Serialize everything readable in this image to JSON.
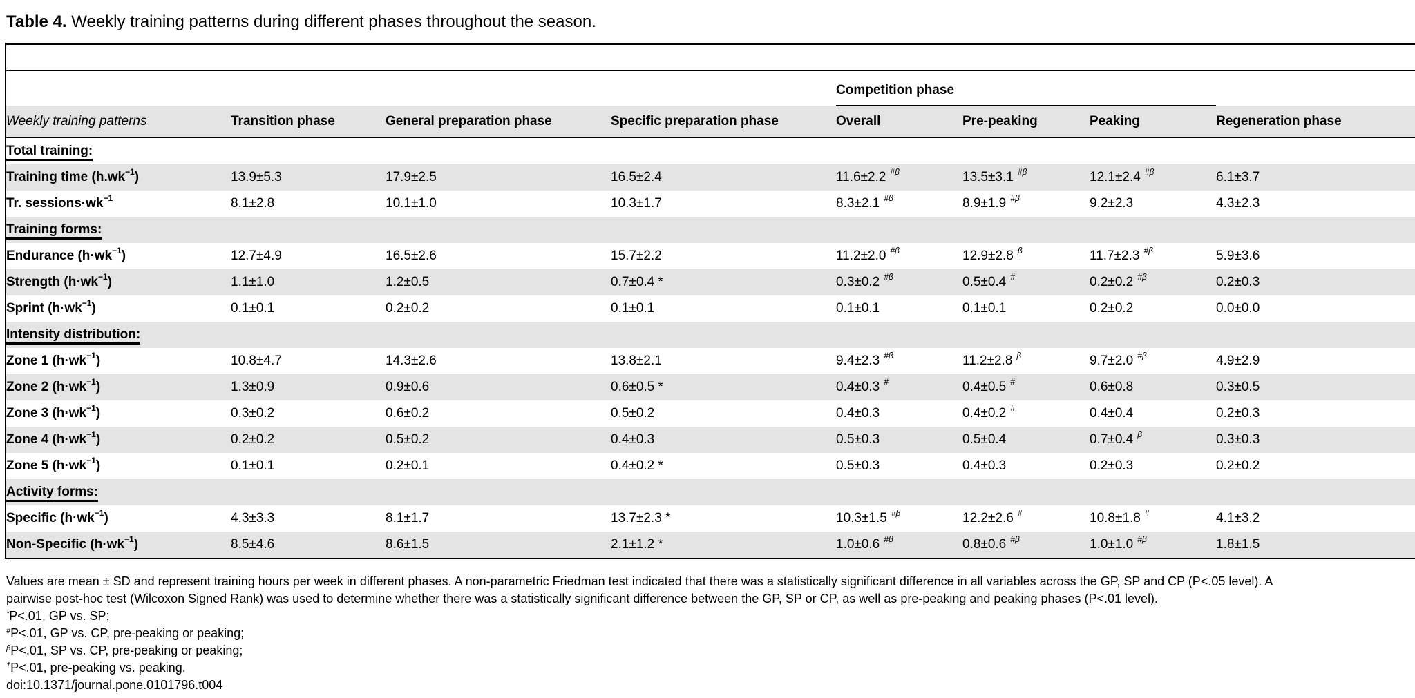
{
  "caption": {
    "label": "Table 4.",
    "text": " Weekly training patterns during different phases throughout the season."
  },
  "header": {
    "group": "Competition phase",
    "columns": [
      "Weekly training patterns",
      "Transition phase",
      "General preparation phase",
      "Specific preparation phase",
      "Overall",
      "Pre-peaking",
      "Peaking",
      "Regeneration phase"
    ]
  },
  "rows": [
    {
      "label": "Total training:",
      "section": true
    },
    {
      "label": "Training time (h.wk",
      "unit_sup": "−1",
      "label_end": ")",
      "cells": [
        [
          "13.9±5.3",
          ""
        ],
        [
          "17.9±2.5",
          ""
        ],
        [
          "16.5±2.4",
          ""
        ],
        [
          "11.6±2.2",
          "#β"
        ],
        [
          "13.5±3.1",
          "#β"
        ],
        [
          "12.1±2.4",
          "#β"
        ],
        [
          "6.1±3.7",
          ""
        ]
      ]
    },
    {
      "label": "Tr. sessions·wk",
      "unit_sup": "−1",
      "label_end": "",
      "cells": [
        [
          "8.1±2.8",
          ""
        ],
        [
          "10.1±1.0",
          ""
        ],
        [
          "10.3±1.7",
          ""
        ],
        [
          "8.3±2.1",
          "#β"
        ],
        [
          "8.9±1.9",
          "#β"
        ],
        [
          "9.2±2.3",
          ""
        ],
        [
          "4.3±2.3",
          ""
        ]
      ]
    },
    {
      "label": "Training forms:",
      "section": true
    },
    {
      "label": "Endurance (h·wk",
      "unit_sup": "−1",
      "label_end": ")",
      "cells": [
        [
          "12.7±4.9",
          ""
        ],
        [
          "16.5±2.6",
          ""
        ],
        [
          "15.7±2.2",
          ""
        ],
        [
          "11.2±2.0",
          "#β"
        ],
        [
          "12.9±2.8",
          "β"
        ],
        [
          "11.7±2.3",
          "#β"
        ],
        [
          "5.9±3.6",
          ""
        ]
      ]
    },
    {
      "label": "Strength (h·wk",
      "unit_sup": "−1",
      "label_end": ")",
      "cells": [
        [
          "1.1±1.0",
          ""
        ],
        [
          "1.2±0.5",
          ""
        ],
        [
          "0.7±0.4 *",
          ""
        ],
        [
          "0.3±0.2",
          "#β"
        ],
        [
          "0.5±0.4",
          "#"
        ],
        [
          "0.2±0.2",
          "#β"
        ],
        [
          "0.2±0.3",
          ""
        ]
      ]
    },
    {
      "label": "Sprint (h·wk",
      "unit_sup": "−1",
      "label_end": ")",
      "cells": [
        [
          "0.1±0.1",
          ""
        ],
        [
          "0.2±0.2",
          ""
        ],
        [
          "0.1±0.1",
          ""
        ],
        [
          "0.1±0.1",
          ""
        ],
        [
          "0.1±0.1",
          ""
        ],
        [
          "0.2±0.2",
          ""
        ],
        [
          "0.0±0.0",
          ""
        ]
      ]
    },
    {
      "label": "Intensity distribution:",
      "section": true
    },
    {
      "label": "Zone 1 (h·wk",
      "unit_sup": "−1",
      "label_end": ")",
      "cells": [
        [
          "10.8±4.7",
          ""
        ],
        [
          "14.3±2.6",
          ""
        ],
        [
          "13.8±2.1",
          ""
        ],
        [
          "9.4±2.3",
          "#β"
        ],
        [
          "11.2±2.8",
          "β"
        ],
        [
          "9.7±2.0",
          "#β"
        ],
        [
          "4.9±2.9",
          ""
        ]
      ]
    },
    {
      "label": "Zone 2 (h·wk",
      "unit_sup": "−1",
      "label_end": ")",
      "cells": [
        [
          "1.3±0.9",
          ""
        ],
        [
          "0.9±0.6",
          ""
        ],
        [
          "0.6±0.5 *",
          ""
        ],
        [
          "0.4±0.3",
          "#"
        ],
        [
          "0.4±0.5",
          "#"
        ],
        [
          "0.6±0.8",
          ""
        ],
        [
          "0.3±0.5",
          ""
        ]
      ]
    },
    {
      "label": "Zone 3 (h·wk",
      "unit_sup": "−1",
      "label_end": ")",
      "cells": [
        [
          "0.3±0.2",
          ""
        ],
        [
          "0.6±0.2",
          ""
        ],
        [
          "0.5±0.2",
          ""
        ],
        [
          "0.4±0.3",
          ""
        ],
        [
          "0.4±0.2",
          "#"
        ],
        [
          "0.4±0.4",
          ""
        ],
        [
          "0.2±0.3",
          ""
        ]
      ]
    },
    {
      "label": "Zone 4 (h·wk",
      "unit_sup": "−1",
      "label_end": ")",
      "cells": [
        [
          "0.2±0.2",
          ""
        ],
        [
          "0.5±0.2",
          ""
        ],
        [
          "0.4±0.3",
          ""
        ],
        [
          "0.5±0.3",
          ""
        ],
        [
          "0.5±0.4",
          ""
        ],
        [
          "0.7±0.4",
          "β"
        ],
        [
          "0.3±0.3",
          ""
        ]
      ]
    },
    {
      "label": "Zone 5 (h·wk",
      "unit_sup": "−1",
      "label_end": ")",
      "cells": [
        [
          "0.1±0.1",
          ""
        ],
        [
          "0.2±0.1",
          ""
        ],
        [
          "0.4±0.2 *",
          ""
        ],
        [
          "0.5±0.3",
          ""
        ],
        [
          "0.4±0.3",
          ""
        ],
        [
          "0.2±0.3",
          ""
        ],
        [
          "0.2±0.2",
          ""
        ]
      ]
    },
    {
      "label": "Activity forms:",
      "section": true
    },
    {
      "label": "Specific (h·wk",
      "unit_sup": "−1",
      "label_end": ")",
      "cells": [
        [
          "4.3±3.3",
          ""
        ],
        [
          "8.1±1.7",
          ""
        ],
        [
          "13.7±2.3 *",
          ""
        ],
        [
          "10.3±1.5",
          "#β"
        ],
        [
          "12.2±2.6",
          "#"
        ],
        [
          "10.8±1.8",
          "#"
        ],
        [
          "4.1±3.2",
          ""
        ]
      ]
    },
    {
      "label": "Non-Specific (h·wk",
      "unit_sup": "−1",
      "label_end": ")",
      "cells": [
        [
          "8.5±4.6",
          ""
        ],
        [
          "8.6±1.5",
          ""
        ],
        [
          "2.1±1.2 *",
          ""
        ],
        [
          "1.0±0.6",
          "#β"
        ],
        [
          "0.8±0.6",
          "#β"
        ],
        [
          "1.0±1.0",
          "#β"
        ],
        [
          "1.8±1.5",
          ""
        ]
      ]
    }
  ],
  "footer": {
    "line1": "Values are mean ± SD and represent training hours per week in different phases. A non-parametric Friedman test indicated that there was a statistically significant difference in all variables across the GP, SP and CP (P<.05 level). A",
    "line2": "pairwise post-hoc test (Wilcoxon Signed Rank) was used to determine whether there was a statistically significant difference between the GP, SP or CP, as well as pre-peaking and peaking phases (P<.01 level).",
    "notes": [
      {
        "sym": "*",
        "text": "P<.01, GP vs. SP;"
      },
      {
        "sym": "#",
        "text": "P<.01, GP vs. CP, pre-peaking or peaking;"
      },
      {
        "sym": "β",
        "text": "P<.01, SP vs. CP, pre-peaking or peaking;"
      },
      {
        "sym": "†",
        "text": "P<.01, pre-peaking vs. peaking."
      }
    ],
    "doi": "doi:10.1371/journal.pone.0101796.t004"
  }
}
